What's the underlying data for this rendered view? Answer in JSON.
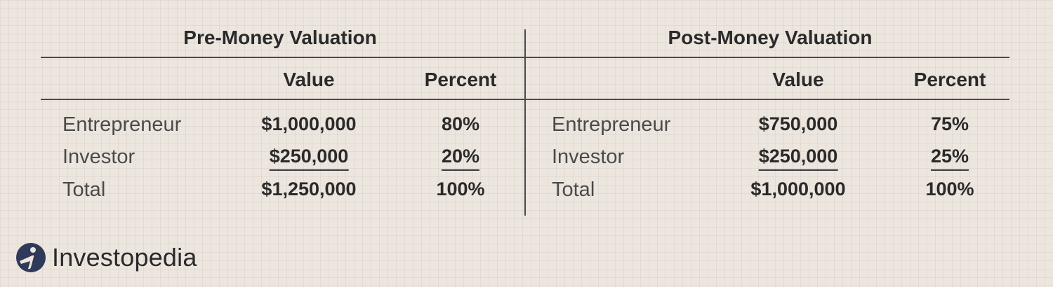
{
  "tables": {
    "pre": {
      "title": "Pre-Money Valuation",
      "col_value": "Value",
      "col_percent": "Percent",
      "rows": [
        {
          "label": "Entrepreneur",
          "value": "$1,000,000",
          "percent": "80%"
        },
        {
          "label": "Investor",
          "value": "$250,000",
          "percent": "20%"
        },
        {
          "label": "Total",
          "value": "$1,250,000",
          "percent": "100%"
        }
      ]
    },
    "post": {
      "title": "Post-Money Valuation",
      "col_value": "Value",
      "col_percent": "Percent",
      "rows": [
        {
          "label": "Entrepreneur",
          "value": "$750,000",
          "percent": "75%"
        },
        {
          "label": "Investor",
          "value": "$250,000",
          "percent": "25%"
        },
        {
          "label": "Total",
          "value": "$1,000,000",
          "percent": "100%"
        }
      ]
    }
  },
  "logo": {
    "text": "Investopedia",
    "icon": "investopedia-logo-icon",
    "color": "#2f3a5a"
  },
  "colors": {
    "background": "#ede6df",
    "rule": "#4a4a4a",
    "text": "#2a2a2a"
  }
}
